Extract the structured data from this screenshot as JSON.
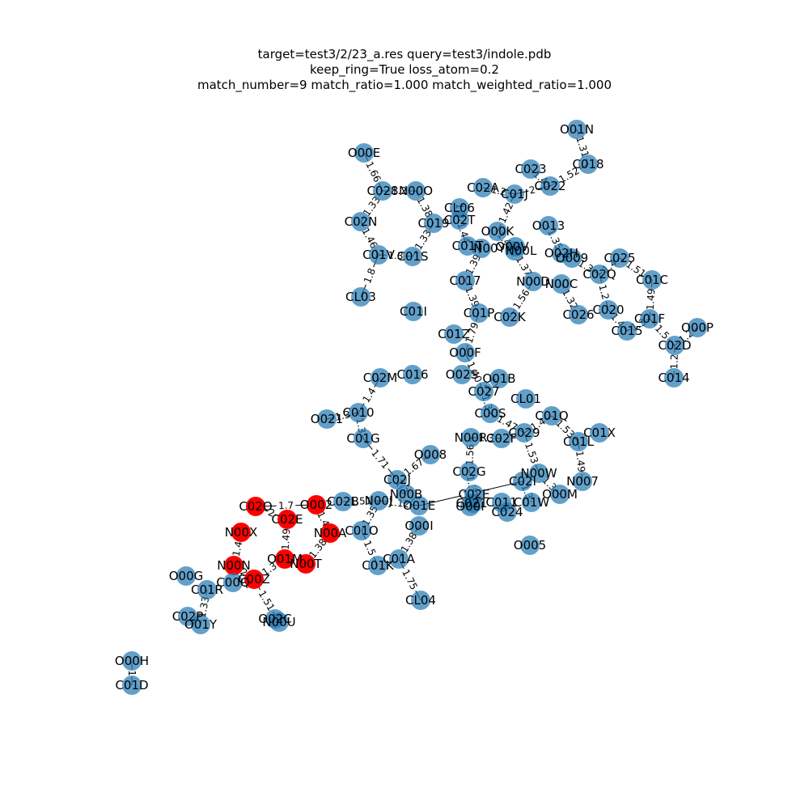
{
  "title": {
    "line1": "target=test3/2/23_a.res query=test3/indole.pdb",
    "line2": "keep_ring=True loss_atom=0.2",
    "line3": "match_number=9 match_ratio=1.000 match_weighted_ratio=1.000"
  },
  "colors": {
    "default_node": "#1f77b4",
    "matched_node": "#ff0000",
    "edge": "#000000"
  },
  "nodes": [
    {
      "id": "O01N",
      "label": "O01N",
      "matched": false
    },
    {
      "id": "C018",
      "label": "C018",
      "matched": false
    },
    {
      "id": "O00E",
      "label": "O00E",
      "matched": false
    },
    {
      "id": "C023",
      "label": "C023",
      "matched": false
    },
    {
      "id": "C022",
      "label": "C022",
      "matched": false
    },
    {
      "id": "C02A",
      "label": "C02A",
      "matched": false
    },
    {
      "id": "C01J",
      "label": "C01J",
      "matched": false
    },
    {
      "id": "C028",
      "label": "C028",
      "matched": false
    },
    {
      "id": "N00O",
      "label": "N00O",
      "matched": false
    },
    {
      "id": "CL06",
      "label": "CL06",
      "matched": false
    },
    {
      "id": "C02N",
      "label": "C02N",
      "matched": false
    },
    {
      "id": "C019",
      "label": "C019",
      "matched": false
    },
    {
      "id": "C02T",
      "label": "C02T",
      "matched": false
    },
    {
      "id": "O013",
      "label": "O013",
      "matched": false
    },
    {
      "id": "O00K",
      "label": "O00K",
      "matched": false
    },
    {
      "id": "C01T",
      "label": "C01T",
      "matched": false
    },
    {
      "id": "N00Y",
      "label": "N00Y",
      "matched": false
    },
    {
      "id": "O00V",
      "label": "O00V",
      "matched": false
    },
    {
      "id": "N00L",
      "label": "N00L",
      "matched": false
    },
    {
      "id": "C01V",
      "label": "C01V",
      "matched": false
    },
    {
      "id": "C01S",
      "label": "C01S",
      "matched": false
    },
    {
      "id": "O02H",
      "label": "O02H",
      "matched": false
    },
    {
      "id": "O009",
      "label": "O009",
      "matched": false
    },
    {
      "id": "C025",
      "label": "C025",
      "matched": false
    },
    {
      "id": "C02Q",
      "label": "C02Q",
      "matched": false
    },
    {
      "id": "C01C",
      "label": "C01C",
      "matched": false
    },
    {
      "id": "C017",
      "label": "C017",
      "matched": false
    },
    {
      "id": "N00D",
      "label": "N00D",
      "matched": false
    },
    {
      "id": "N00C",
      "label": "N00C",
      "matched": false
    },
    {
      "id": "CL03",
      "label": "CL03",
      "matched": false
    },
    {
      "id": "C01I",
      "label": "C01I",
      "matched": false
    },
    {
      "id": "C01P",
      "label": "C01P",
      "matched": false
    },
    {
      "id": "C02K",
      "label": "C02K",
      "matched": false
    },
    {
      "id": "C026",
      "label": "C026",
      "matched": false
    },
    {
      "id": "C020",
      "label": "C020",
      "matched": false
    },
    {
      "id": "C01F",
      "label": "C01F",
      "matched": false
    },
    {
      "id": "C015",
      "label": "C015",
      "matched": false
    },
    {
      "id": "O00P",
      "label": "O00P",
      "matched": false
    },
    {
      "id": "C01Z",
      "label": "C01Z",
      "matched": false
    },
    {
      "id": "C02D",
      "label": "C02D",
      "matched": false
    },
    {
      "id": "O00F",
      "label": "O00F",
      "matched": false
    },
    {
      "id": "C02M",
      "label": "C02M",
      "matched": false
    },
    {
      "id": "C016",
      "label": "C016",
      "matched": false
    },
    {
      "id": "O02S",
      "label": "O02S",
      "matched": false
    },
    {
      "id": "O01B",
      "label": "O01B",
      "matched": false
    },
    {
      "id": "C014",
      "label": "C014",
      "matched": false
    },
    {
      "id": "C027",
      "label": "C027",
      "matched": false
    },
    {
      "id": "CL01",
      "label": "CL01",
      "matched": false
    },
    {
      "id": "C010",
      "label": "C010",
      "matched": false
    },
    {
      "id": "O021",
      "label": "O021",
      "matched": false
    },
    {
      "id": "C00S",
      "label": "C00S",
      "matched": false
    },
    {
      "id": "C01Q",
      "label": "C01Q",
      "matched": false
    },
    {
      "id": "C029",
      "label": "C029",
      "matched": false
    },
    {
      "id": "C01X",
      "label": "C01X",
      "matched": false
    },
    {
      "id": "C01G",
      "label": "C01G",
      "matched": false
    },
    {
      "id": "N00R",
      "label": "N00R",
      "matched": false
    },
    {
      "id": "C02F",
      "label": "C02F",
      "matched": false
    },
    {
      "id": "C01L",
      "label": "C01L",
      "matched": false
    },
    {
      "id": "O008",
      "label": "O008",
      "matched": false
    },
    {
      "id": "C02G",
      "label": "C02G",
      "matched": false
    },
    {
      "id": "N00W",
      "label": "N00W",
      "matched": false
    },
    {
      "id": "C02J",
      "label": "C02J",
      "matched": false
    },
    {
      "id": "N007",
      "label": "N007",
      "matched": false
    },
    {
      "id": "C02I",
      "label": "C02I",
      "matched": false
    },
    {
      "id": "O00M",
      "label": "O00M",
      "matched": false
    },
    {
      "id": "N00B",
      "label": "N00B",
      "matched": false
    },
    {
      "id": "C02B",
      "label": "C02B",
      "matched": false
    },
    {
      "id": "N00J",
      "label": "N00J",
      "matched": false
    },
    {
      "id": "C02E_r",
      "label": "C02E",
      "matched": false
    },
    {
      "id": "C02O",
      "label": "C02O",
      "matched": true
    },
    {
      "id": "O002",
      "label": "O002",
      "matched": true
    },
    {
      "id": "O01E",
      "label": "O01E",
      "matched": false
    },
    {
      "id": "C021",
      "label": "C021",
      "matched": false
    },
    {
      "id": "C011",
      "label": "C011",
      "matched": false
    },
    {
      "id": "C01W",
      "label": "C01W",
      "matched": false
    },
    {
      "id": "O00I_r",
      "label": "O00I",
      "matched": false
    },
    {
      "id": "C024",
      "label": "C024",
      "matched": false
    },
    {
      "id": "C02E",
      "label": "C02E",
      "matched": true
    },
    {
      "id": "N00X",
      "label": "N00X",
      "matched": true
    },
    {
      "id": "N00A",
      "label": "N00A",
      "matched": true
    },
    {
      "id": "C01O",
      "label": "C01O",
      "matched": false
    },
    {
      "id": "O00I",
      "label": "O00I",
      "matched": false
    },
    {
      "id": "O005",
      "label": "O005",
      "matched": false
    },
    {
      "id": "N00N",
      "label": "N00N",
      "matched": true
    },
    {
      "id": "O01M",
      "label": "O01M",
      "matched": true
    },
    {
      "id": "N00T",
      "label": "N00T",
      "matched": true
    },
    {
      "id": "C01K",
      "label": "C01K",
      "matched": false
    },
    {
      "id": "C01A",
      "label": "C01A",
      "matched": false
    },
    {
      "id": "O00G",
      "label": "O00G",
      "matched": false
    },
    {
      "id": "C00Z",
      "label": "C00Z",
      "matched": true
    },
    {
      "id": "C00Q",
      "label": "C00Q",
      "matched": false
    },
    {
      "id": "C01R",
      "label": "C01R",
      "matched": false
    },
    {
      "id": "CL04",
      "label": "CL04",
      "matched": false
    },
    {
      "id": "C02P",
      "label": "C02P",
      "matched": false
    },
    {
      "id": "O01Y",
      "label": "O01Y",
      "matched": false
    },
    {
      "id": "O02C",
      "label": "O02C",
      "matched": false
    },
    {
      "id": "N00U",
      "label": "N00U",
      "matched": false
    },
    {
      "id": "O00H",
      "label": "O00H",
      "matched": false
    },
    {
      "id": "C01D",
      "label": "C01D",
      "matched": false
    }
  ],
  "edges": [
    {
      "source": "O01N",
      "target": "C018",
      "label": "1.31"
    },
    {
      "source": "C018",
      "target": "C022",
      "label": "1.52"
    },
    {
      "source": "C022",
      "target": "C023",
      "label": "1.4"
    },
    {
      "source": "C022",
      "target": "C01J",
      "label": "2"
    },
    {
      "source": "C02A",
      "target": "C01J",
      "label": "1.2"
    },
    {
      "source": "C01J",
      "target": "O00K",
      "label": "1.42"
    },
    {
      "source": "O00E",
      "target": "C028",
      "label": "1.66"
    },
    {
      "source": "C028",
      "target": "C02N",
      "label": "1.33"
    },
    {
      "source": "C028",
      "target": "N00O",
      "label": "1.2"
    },
    {
      "source": "N00O",
      "target": "C019",
      "label": "1.38"
    },
    {
      "source": "C019",
      "target": "C01S",
      "label": "1.33"
    },
    {
      "source": "C02N",
      "target": "C01V",
      "label": "1.46"
    },
    {
      "source": "C01V",
      "target": "C01S",
      "label": "1.3"
    },
    {
      "source": "C01V",
      "target": "CL03",
      "label": "1.8"
    },
    {
      "source": "CL06",
      "target": "C02T",
      "label": "1.74"
    },
    {
      "source": "C02T",
      "target": "C01T",
      "label": "1.44"
    },
    {
      "source": "O00K",
      "target": "N00L",
      "label": "1.44"
    },
    {
      "source": "O013",
      "target": "O02H",
      "label": "1.35"
    },
    {
      "source": "N00Y",
      "target": "C017",
      "label": "1.39"
    },
    {
      "source": "N00L",
      "target": "N00D",
      "label": "1.37"
    },
    {
      "source": "O009",
      "target": "C02Q",
      "label": "1.3"
    },
    {
      "source": "C025",
      "target": "C02Q",
      "label": "1.4"
    },
    {
      "source": "C025",
      "target": "C01C",
      "label": "1.51"
    },
    {
      "source": "C02Q",
      "target": "C020",
      "label": "1.2"
    },
    {
      "source": "N00C",
      "target": "C026",
      "label": "1.32"
    },
    {
      "source": "C01C",
      "target": "C01F",
      "label": "1.49"
    },
    {
      "source": "C017",
      "target": "C01P",
      "label": "1.39"
    },
    {
      "source": "N00D",
      "target": "C02K",
      "label": "1.56"
    },
    {
      "source": "C020",
      "target": "C015",
      "label": "1.4"
    },
    {
      "source": "C01F",
      "target": "C015",
      "label": "1.3"
    },
    {
      "source": "C01F",
      "target": "C02D",
      "label": "1.5"
    },
    {
      "source": "O00P",
      "target": "C02D",
      "label": "1.2"
    },
    {
      "source": "C02D",
      "target": "C014",
      "label": "1.2"
    },
    {
      "source": "C01P",
      "target": "O00F",
      "label": "1.79"
    },
    {
      "source": "O00F",
      "target": "C027",
      "label": "1.40"
    },
    {
      "source": "O01B",
      "target": "C027",
      "label": "1.3"
    },
    {
      "source": "C02M",
      "target": "C010",
      "label": "1.4"
    },
    {
      "source": "O021",
      "target": "C010",
      "label": "1.3"
    },
    {
      "source": "C010",
      "target": "C01G",
      "label": "1.3"
    },
    {
      "source": "C01G",
      "target": "C02J",
      "label": "1.71"
    },
    {
      "source": "C027",
      "target": "C00S",
      "label": "1.3"
    },
    {
      "source": "C00S",
      "target": "C029",
      "label": "1.47"
    },
    {
      "source": "C01Q",
      "target": "C029",
      "label": "1.4"
    },
    {
      "source": "C01Q",
      "target": "C01L",
      "label": "1.53"
    },
    {
      "source": "C01L",
      "target": "N007",
      "label": "1.49"
    },
    {
      "source": "C029",
      "target": "N00W",
      "label": "1.53"
    },
    {
      "source": "N00R",
      "target": "C02F",
      "label": "1.3"
    },
    {
      "source": "N00R",
      "target": "C02G",
      "label": "1.56"
    },
    {
      "source": "C02G",
      "target": "C02F_r",
      "label": "1.3"
    },
    {
      "source": "O008",
      "target": "C02J",
      "label": "1.67"
    },
    {
      "source": "C02J",
      "target": "N00B",
      "label": "1.3"
    },
    {
      "source": "N00J",
      "target": "O01E",
      "label": "1.12"
    },
    {
      "source": "O01E",
      "target": "C02I",
      "label": "1.5"
    },
    {
      "source": "C02I",
      "target": "C01W",
      "label": "1.3"
    },
    {
      "source": "N00W",
      "target": "O00M",
      "label": "1.3"
    },
    {
      "source": "C02B",
      "target": "N00J",
      "label": "1.51"
    },
    {
      "source": "C02O",
      "target": "O002",
      "label": "1.7"
    },
    {
      "source": "C02O",
      "target": "C02E",
      "label": "2"
    },
    {
      "source": "O002",
      "target": "N00A",
      "label": "1.4"
    },
    {
      "source": "C02E",
      "target": "O01M",
      "label": "1.49"
    },
    {
      "source": "N00A",
      "target": "N00T",
      "label": "1.38"
    },
    {
      "source": "N00X",
      "target": "N00N",
      "label": "1.4"
    },
    {
      "source": "N00N",
      "target": "C00Z",
      "label": "2"
    },
    {
      "source": "O01M",
      "target": "C00Z",
      "label": "1.3"
    },
    {
      "source": "C00Z",
      "target": "N00U",
      "label": "1.51"
    },
    {
      "source": "N00J",
      "target": "C01O",
      "label": "1.35"
    },
    {
      "source": "C01O",
      "target": "C01K",
      "label": "1.5"
    },
    {
      "source": "O00I",
      "target": "C01A",
      "label": "1.38"
    },
    {
      "source": "C01A",
      "target": "CL04",
      "label": "1.75"
    },
    {
      "source": "C01R",
      "target": "O01Y",
      "label": "1.33"
    },
    {
      "source": "O00H",
      "target": "C01D",
      "label": "1"
    }
  ]
}
